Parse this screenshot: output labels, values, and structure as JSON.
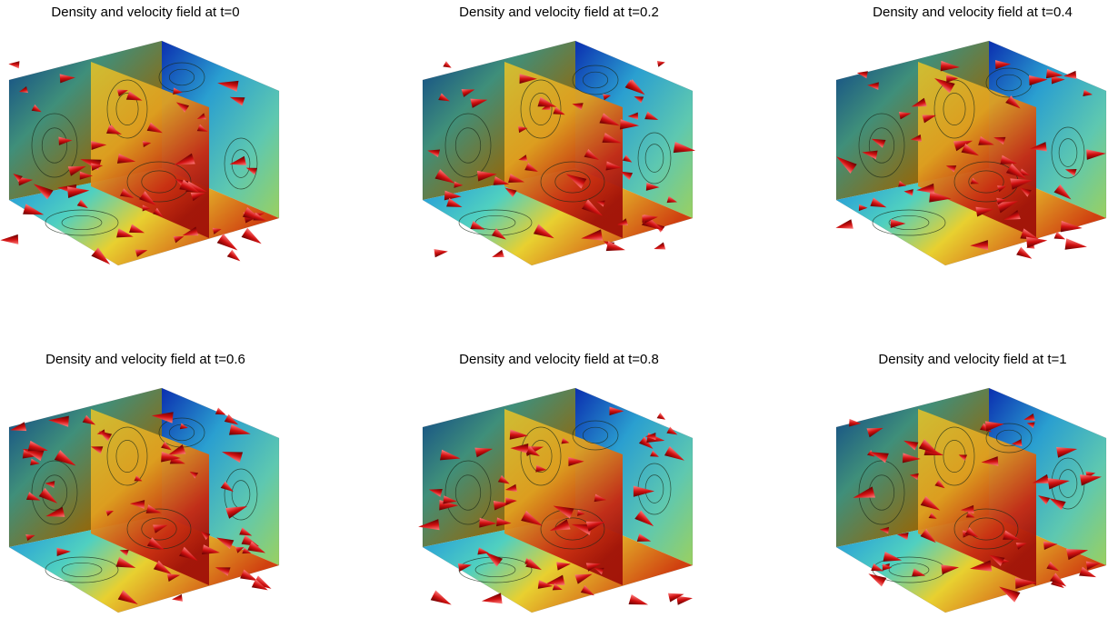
{
  "panels": [
    {
      "title": "Density and velocity field at t=0"
    },
    {
      "title": "Density and velocity field at t=0.2"
    },
    {
      "title": "Density and velocity field at t=0.4"
    },
    {
      "title": "Density and velocity field at t=0.6"
    },
    {
      "title": "Density and velocity field at t=0.8"
    },
    {
      "title": "Density and velocity field at t=1"
    }
  ]
}
